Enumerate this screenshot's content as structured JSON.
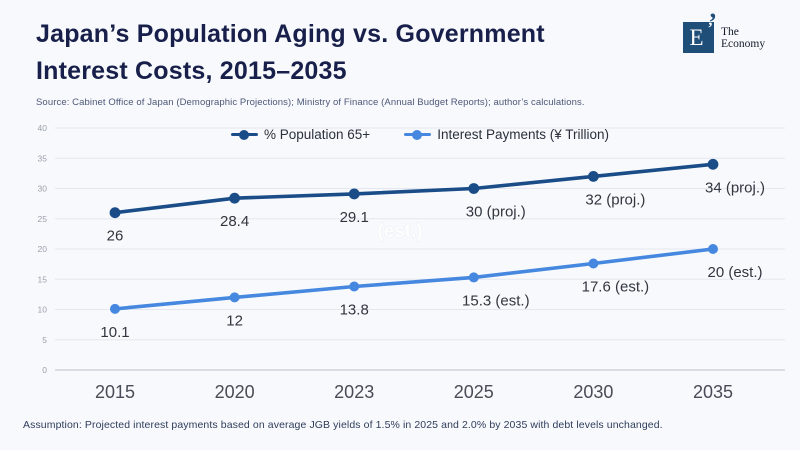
{
  "header": {
    "title_line1": "Japan’s Population Aging vs. Government",
    "title_line2": "Interest Costs, 2015–2035",
    "source": "Source:  Cabinet Office of Japan (Demographic Projections); Ministry of Finance (Annual Budget Reports); author’s calculations.",
    "logo": {
      "letter": "E",
      "quote": "’",
      "name_line1": "The",
      "name_line2": "Economy"
    }
  },
  "chart_data": {
    "type": "line",
    "categories": [
      "2015",
      "2020",
      "2023",
      "2025",
      "2030",
      "2035"
    ],
    "series": [
      {
        "name": "% Population 65+",
        "color": "#1a4d88",
        "values": [
          26,
          28.4,
          29.1,
          30,
          32,
          34
        ],
        "labels": [
          "26",
          "28.4",
          "29.1",
          "30 (proj.)",
          "32 (proj.)",
          "34 (proj.)"
        ]
      },
      {
        "name": "Interest Payments (¥ Trillion)",
        "color": "#4688e0",
        "values": [
          10.1,
          12,
          13.8,
          15.3,
          17.6,
          20
        ],
        "labels": [
          "10.1",
          "12",
          "13.8",
          "15.3 (est.)",
          "17.6 (est.)",
          "20 (est.)"
        ]
      }
    ],
    "ylim": [
      0,
      40
    ],
    "yticks": [
      0,
      5,
      10,
      15,
      20,
      25,
      30,
      35,
      40
    ],
    "grid": true,
    "legend_position": "top-center",
    "ghost_label": "(est.)"
  },
  "colors": {
    "background": "#f8f9fc",
    "brand_navy": "#1f4e79",
    "title_navy": "#171f4a",
    "gridline": "#e4e7ee",
    "axis_tick_text": "#9aa0ac",
    "data_label_text": "#31363f",
    "x_label_text": "#474c56"
  },
  "footer": {
    "assumption": "Assumption: Projected interest payments based on average JGB yields of 1.5% in 2025 and 2.0% by 2035 with debt levels unchanged."
  }
}
